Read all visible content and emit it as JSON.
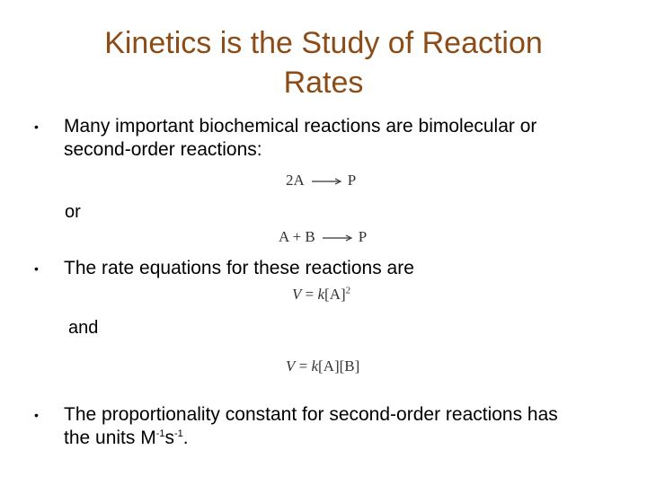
{
  "title": {
    "line1": "Kinetics is the Study of Reaction",
    "line2": "Rates"
  },
  "bullets": [
    {
      "marker": "•",
      "line1": "Many important biochemical reactions are bimolecular or",
      "line2": "second-order reactions:"
    },
    {
      "marker": "•",
      "line1": "The rate equations for these reactions are"
    },
    {
      "marker": "•",
      "line1": "The proportionality constant for second-order reactions has",
      "line2_prefix": "the units M",
      "exp1": "-1",
      "s": "s",
      "exp2": "-1",
      "end": "."
    }
  ],
  "connectors": {
    "or": "or",
    "and": "and"
  },
  "equations": {
    "reaction1": {
      "left": "2A",
      "right": "P"
    },
    "reaction2": {
      "left": "A + B",
      "right": "P"
    },
    "rate1": {
      "lhs": "V",
      "eq": "=",
      "k": "k",
      "term": "[A]",
      "power": "2"
    },
    "rate2": {
      "lhs": "V",
      "eq": "=",
      "k": "k",
      "term1": "[A]",
      "term2": "[B]"
    }
  }
}
